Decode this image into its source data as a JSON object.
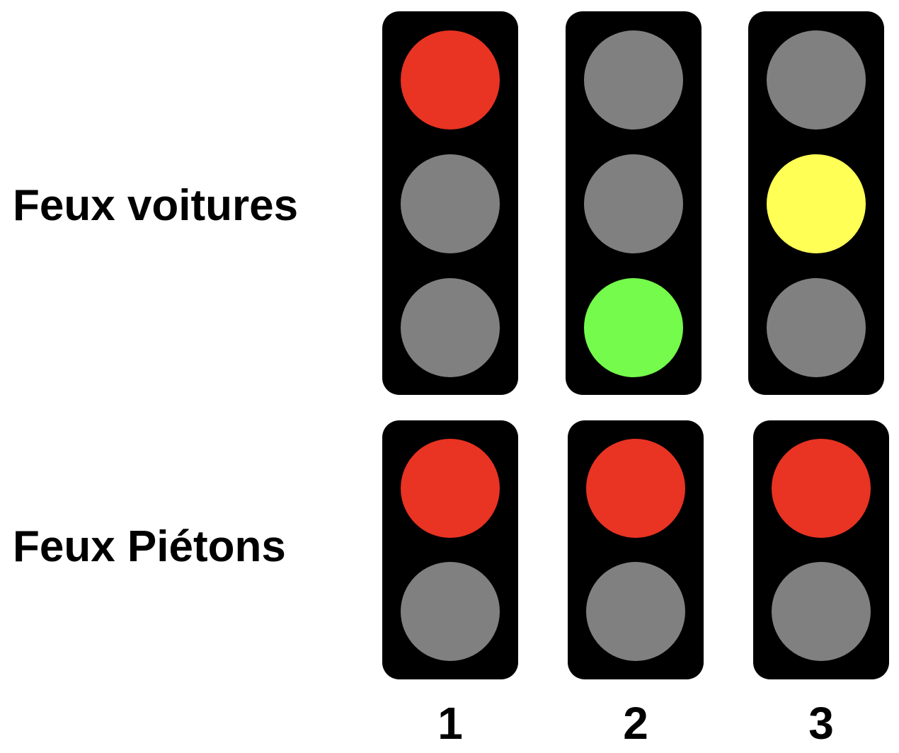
{
  "labels": {
    "cars": "Feux voitures",
    "pedestrians": "Feux Piétons"
  },
  "colors": {
    "red": "#e93323",
    "yellow": "#ffff55",
    "green": "#75fb4c",
    "off": "#808080",
    "housing": "#000000"
  },
  "columns": [
    {
      "number": "1",
      "car_signal": {
        "top": "red",
        "middle": "off",
        "bottom": "off"
      },
      "pedestrian_signal": {
        "top": "red",
        "bottom": "off"
      }
    },
    {
      "number": "2",
      "car_signal": {
        "top": "off",
        "middle": "off",
        "bottom": "green"
      },
      "pedestrian_signal": {
        "top": "red",
        "bottom": "off"
      }
    },
    {
      "number": "3",
      "car_signal": {
        "top": "off",
        "middle": "yellow",
        "bottom": "off"
      },
      "pedestrian_signal": {
        "top": "red",
        "bottom": "off"
      }
    }
  ]
}
